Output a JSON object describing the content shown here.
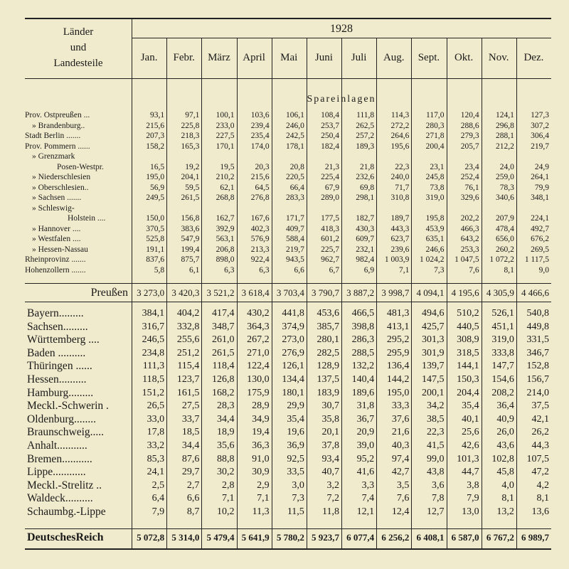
{
  "header": {
    "label_lines": [
      "Länder",
      "und",
      "Landesteile"
    ],
    "year": "1928",
    "months": [
      "Jan.",
      "Febr.",
      "März",
      "April",
      "Mai",
      "Juni",
      "Juli",
      "Aug.",
      "Sept.",
      "Okt.",
      "Nov.",
      "Dez."
    ]
  },
  "section": "Spareinlagen",
  "prussia_rows": [
    {
      "label": [
        "Prov. Ostpreußen ..."
      ],
      "values": [
        "93,1",
        "97,1",
        "100,1",
        "103,6",
        "106,1",
        "108,4",
        "111,8",
        "114,3",
        "117,0",
        "120,4",
        "124,1",
        "127,3"
      ]
    },
    {
      "label": [
        "» Brandenburg.."
      ],
      "values": [
        "215,6",
        "225,8",
        "233,0",
        "239,4",
        "246,0",
        "253,7",
        "262,5",
        "272,2",
        "280,3",
        "288,6",
        "296,8",
        "307,2"
      ]
    },
    {
      "label": [
        "Stadt Berlin ......."
      ],
      "values": [
        "207,3",
        "218,3",
        "227,5",
        "235,4",
        "242,5",
        "250,4",
        "257,2",
        "264,6",
        "271,8",
        "279,3",
        "288,1",
        "306,4"
      ]
    },
    {
      "label": [
        "Prov. Pommern ......"
      ],
      "values": [
        "158,2",
        "165,3",
        "170,1",
        "174,0",
        "178,1",
        "182,4",
        "189,3",
        "195,6",
        "200,4",
        "205,7",
        "212,2",
        "219,7"
      ]
    },
    {
      "label": [
        "» Grenzmark",
        "Posen-Westpr."
      ],
      "values": [
        "16,5",
        "19,2",
        "19,5",
        "20,3",
        "20,8",
        "21,3",
        "21,8",
        "22,3",
        "23,1",
        "23,4",
        "24,0",
        "24,9"
      ]
    },
    {
      "label": [
        "» Niederschlesien"
      ],
      "values": [
        "195,0",
        "204,1",
        "210,2",
        "215,6",
        "220,5",
        "225,4",
        "232,6",
        "240,0",
        "245,8",
        "252,4",
        "259,0",
        "264,1"
      ]
    },
    {
      "label": [
        "» Oberschlesien.."
      ],
      "values": [
        "56,9",
        "59,5",
        "62,1",
        "64,5",
        "66,4",
        "67,9",
        "69,8",
        "71,7",
        "73,8",
        "76,1",
        "78,3",
        "79,9"
      ]
    },
    {
      "label": [
        "» Sachsen ......."
      ],
      "values": [
        "249,5",
        "261,5",
        "268,8",
        "276,8",
        "283,3",
        "289,0",
        "298,1",
        "310,8",
        "319,0",
        "329,6",
        "340,6",
        "348,1"
      ]
    },
    {
      "label": [
        "» Schleswig-",
        "Holstein ...."
      ],
      "values": [
        "150,0",
        "156,8",
        "162,7",
        "167,6",
        "171,7",
        "177,5",
        "182,7",
        "189,7",
        "195,8",
        "202,2",
        "207,9",
        "224,1"
      ]
    },
    {
      "label": [
        "» Hannover ...."
      ],
      "values": [
        "370,5",
        "383,6",
        "392,9",
        "402,3",
        "409,7",
        "418,3",
        "430,3",
        "443,3",
        "453,9",
        "466,3",
        "478,4",
        "492,7"
      ]
    },
    {
      "label": [
        "» Westfalen ...."
      ],
      "values": [
        "525,8",
        "547,9",
        "563,1",
        "576,9",
        "588,4",
        "601,2",
        "609,7",
        "623,7",
        "635,1",
        "643,2",
        "656,0",
        "676,2"
      ]
    },
    {
      "label": [
        "» Hessen-Nassau"
      ],
      "values": [
        "191,1",
        "199,4",
        "206,8",
        "213,3",
        "219,7",
        "225,7",
        "232,1",
        "239,6",
        "246,6",
        "253,3",
        "260,2",
        "269,5"
      ]
    },
    {
      "label": [
        "Rheinprovinz ......."
      ],
      "values": [
        "837,6",
        "875,7",
        "898,0",
        "922,4",
        "943,5",
        "962,7",
        "982,4",
        "1 003,9",
        "1 024,2",
        "1 047,5",
        "1 072,2",
        "1 117,5"
      ]
    },
    {
      "label": [
        "Hohenzollern ......."
      ],
      "values": [
        "5,8",
        "6,1",
        "6,3",
        "6,3",
        "6,6",
        "6,7",
        "6,9",
        "7,1",
        "7,3",
        "7,6",
        "8,1",
        "9,0"
      ]
    }
  ],
  "prussia_total": {
    "label": "Preußen",
    "values": [
      "3 273,0",
      "3 420,3",
      "3 521,2",
      "3 618,4",
      "3 703,4",
      "3 790,7",
      "3 887,2",
      "3 998,7",
      "4 094,1",
      "4 195,6",
      "4 305,9",
      "4 466,6"
    ]
  },
  "state_rows": [
    {
      "label": "Bayern.........",
      "values": [
        "384,1",
        "404,2",
        "417,4",
        "430,2",
        "441,8",
        "453,6",
        "466,5",
        "481,3",
        "494,6",
        "510,2",
        "526,1",
        "540,8"
      ]
    },
    {
      "label": "Sachsen.........",
      "values": [
        "316,7",
        "332,8",
        "348,7",
        "364,3",
        "374,9",
        "385,7",
        "398,8",
        "413,1",
        "425,7",
        "440,5",
        "451,1",
        "449,8"
      ]
    },
    {
      "label": "Württemberg ....",
      "values": [
        "246,5",
        "255,6",
        "261,0",
        "267,2",
        "273,0",
        "280,1",
        "286,3",
        "295,2",
        "301,3",
        "308,9",
        "319,0",
        "331,5"
      ]
    },
    {
      "label": "Baden ..........",
      "values": [
        "234,8",
        "251,2",
        "261,5",
        "271,0",
        "276,9",
        "282,5",
        "288,5",
        "295,9",
        "301,9",
        "318,5",
        "333,8",
        "346,7"
      ]
    },
    {
      "label": "Thüringen ......",
      "values": [
        "111,3",
        "115,4",
        "118,4",
        "122,4",
        "126,1",
        "128,9",
        "132,2",
        "136,4",
        "139,7",
        "144,1",
        "147,7",
        "152,8"
      ]
    },
    {
      "label": "Hessen..........",
      "values": [
        "118,5",
        "123,7",
        "126,8",
        "130,0",
        "134,4",
        "137,5",
        "140,4",
        "144,2",
        "147,5",
        "150,3",
        "154,6",
        "156,7"
      ]
    },
    {
      "label": "Hamburg.........",
      "values": [
        "151,2",
        "161,5",
        "168,2",
        "175,9",
        "180,1",
        "183,9",
        "189,6",
        "195,0",
        "200,1",
        "204,4",
        "208,2",
        "214,0"
      ]
    },
    {
      "label": "Meckl.-Schwerin .",
      "values": [
        "26,5",
        "27,5",
        "28,3",
        "28,9",
        "29,9",
        "30,7",
        "31,8",
        "33,3",
        "34,2",
        "35,4",
        "36,4",
        "37,5"
      ]
    },
    {
      "label": "Oldenburg........",
      "values": [
        "33,0",
        "33,7",
        "34,4",
        "34,9",
        "35,4",
        "35,8",
        "36,7",
        "37,6",
        "38,5",
        "40,1",
        "40,9",
        "42,1"
      ]
    },
    {
      "label": "Braunschweig.....",
      "values": [
        "17,8",
        "18,5",
        "18,9",
        "19,4",
        "19,6",
        "20,1",
        "20,9",
        "21,6",
        "22,3",
        "25,6",
        "26,0",
        "26,2"
      ]
    },
    {
      "label": "Anhalt...........",
      "values": [
        "33,2",
        "34,4",
        "35,6",
        "36,3",
        "36,9",
        "37,8",
        "39,0",
        "40,3",
        "41,5",
        "42,6",
        "43,6",
        "44,3"
      ]
    },
    {
      "label": "Bremen...........",
      "values": [
        "85,3",
        "87,6",
        "88,8",
        "91,0",
        "92,5",
        "93,4",
        "95,2",
        "97,4",
        "99,0",
        "101,3",
        "102,8",
        "107,5"
      ]
    },
    {
      "label": "Lippe............",
      "values": [
        "24,1",
        "29,7",
        "30,2",
        "30,9",
        "33,5",
        "40,7",
        "41,6",
        "42,7",
        "43,8",
        "44,7",
        "45,8",
        "47,2"
      ]
    },
    {
      "label": "Meckl.-Strelitz ..",
      "values": [
        "2,5",
        "2,7",
        "2,8",
        "2,9",
        "3,0",
        "3,2",
        "3,3",
        "3,5",
        "3,6",
        "3,8",
        "4,0",
        "4,2"
      ]
    },
    {
      "label": "Waldeck..........",
      "values": [
        "6,4",
        "6,6",
        "7,1",
        "7,1",
        "7,3",
        "7,2",
        "7,4",
        "7,6",
        "7,8",
        "7,9",
        "8,1",
        "8,1"
      ]
    },
    {
      "label": "Schaumbg.-Lippe",
      "values": [
        "7,9",
        "8,7",
        "10,2",
        "11,3",
        "11,5",
        "11,8",
        "12,1",
        "12,4",
        "12,7",
        "13,0",
        "13,2",
        "13,6"
      ]
    }
  ],
  "reich_total": {
    "label": "DeutschesReich",
    "values": [
      "5 072,8",
      "5 314,0",
      "5 479,4",
      "5 641,9",
      "5 780,2",
      "5 923,7",
      "6 077,4",
      "6 256,2",
      "6 408,1",
      "6 587,0",
      "6 767,2",
      "6 989,7"
    ]
  }
}
